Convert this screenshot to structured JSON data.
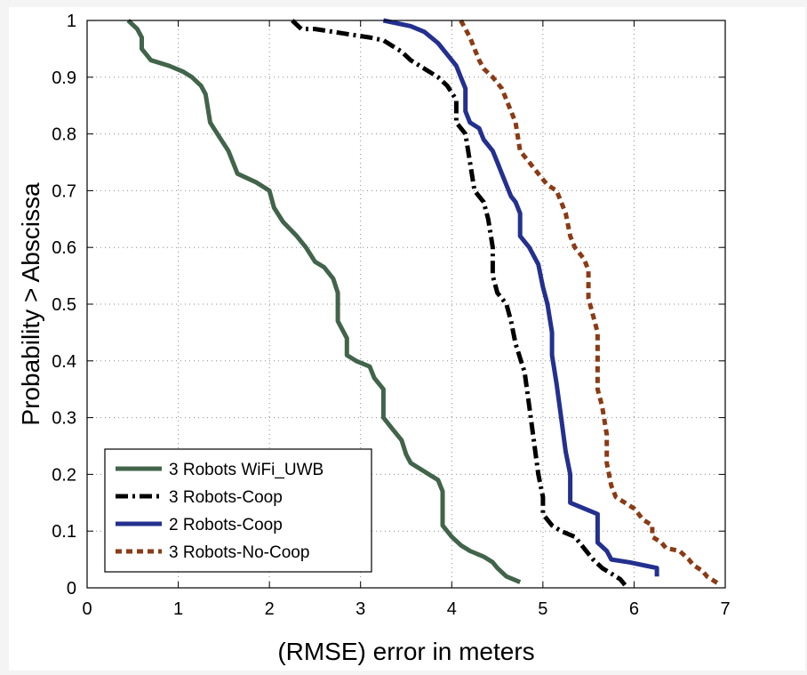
{
  "chart_data": {
    "type": "line",
    "title": "",
    "xlabel": "(RMSE) error in meters",
    "ylabel": "Probability > Abscissa",
    "xlim": [
      0,
      7
    ],
    "ylim": [
      0,
      1
    ],
    "xticks": [
      "0",
      "1",
      "2",
      "3",
      "4",
      "5",
      "6",
      "7"
    ],
    "yticks": [
      "0",
      "0.1",
      "0.2",
      "0.3",
      "0.4",
      "0.5",
      "0.6",
      "0.7",
      "0.8",
      "0.9",
      "1"
    ],
    "grid": true,
    "legend_position": "bottom-left",
    "series": [
      {
        "name": "3 Robots WiFi_UWB",
        "color": "#41644a",
        "style": "solid",
        "points": [
          [
            0.45,
            1.0
          ],
          [
            0.55,
            0.985
          ],
          [
            0.6,
            0.97
          ],
          [
            0.6,
            0.95
          ],
          [
            0.65,
            0.94
          ],
          [
            0.7,
            0.93
          ],
          [
            0.9,
            0.92
          ],
          [
            1.05,
            0.91
          ],
          [
            1.15,
            0.9
          ],
          [
            1.25,
            0.885
          ],
          [
            1.3,
            0.87
          ],
          [
            1.35,
            0.82
          ],
          [
            1.45,
            0.795
          ],
          [
            1.55,
            0.77
          ],
          [
            1.6,
            0.75
          ],
          [
            1.65,
            0.73
          ],
          [
            1.85,
            0.715
          ],
          [
            2.0,
            0.7
          ],
          [
            2.05,
            0.67
          ],
          [
            2.15,
            0.645
          ],
          [
            2.3,
            0.62
          ],
          [
            2.4,
            0.6
          ],
          [
            2.5,
            0.575
          ],
          [
            2.6,
            0.565
          ],
          [
            2.7,
            0.545
          ],
          [
            2.75,
            0.52
          ],
          [
            2.75,
            0.47
          ],
          [
            2.85,
            0.44
          ],
          [
            2.85,
            0.41
          ],
          [
            2.95,
            0.4
          ],
          [
            3.1,
            0.39
          ],
          [
            3.15,
            0.37
          ],
          [
            3.25,
            0.35
          ],
          [
            3.25,
            0.3
          ],
          [
            3.35,
            0.28
          ],
          [
            3.45,
            0.26
          ],
          [
            3.5,
            0.235
          ],
          [
            3.55,
            0.22
          ],
          [
            3.65,
            0.21
          ],
          [
            3.75,
            0.2
          ],
          [
            3.85,
            0.19
          ],
          [
            3.9,
            0.17
          ],
          [
            3.9,
            0.11
          ],
          [
            4.0,
            0.09
          ],
          [
            4.1,
            0.075
          ],
          [
            4.2,
            0.065
          ],
          [
            4.35,
            0.055
          ],
          [
            4.45,
            0.045
          ],
          [
            4.5,
            0.035
          ],
          [
            4.6,
            0.02
          ],
          [
            4.75,
            0.01
          ]
        ]
      },
      {
        "name": "3 Robots-Coop",
        "color": "#000000",
        "style": "dashdot",
        "points": [
          [
            2.25,
            1.0
          ],
          [
            2.35,
            0.985
          ],
          [
            2.5,
            0.985
          ],
          [
            2.7,
            0.98
          ],
          [
            2.9,
            0.975
          ],
          [
            3.1,
            0.97
          ],
          [
            3.25,
            0.965
          ],
          [
            3.35,
            0.955
          ],
          [
            3.45,
            0.945
          ],
          [
            3.55,
            0.93
          ],
          [
            3.7,
            0.915
          ],
          [
            3.85,
            0.9
          ],
          [
            3.95,
            0.885
          ],
          [
            4.05,
            0.86
          ],
          [
            4.05,
            0.82
          ],
          [
            4.15,
            0.8
          ],
          [
            4.2,
            0.75
          ],
          [
            4.25,
            0.7
          ],
          [
            4.35,
            0.68
          ],
          [
            4.4,
            0.65
          ],
          [
            4.45,
            0.6
          ],
          [
            4.45,
            0.55
          ],
          [
            4.5,
            0.52
          ],
          [
            4.6,
            0.5
          ],
          [
            4.65,
            0.47
          ],
          [
            4.7,
            0.43
          ],
          [
            4.8,
            0.38
          ],
          [
            4.85,
            0.32
          ],
          [
            4.9,
            0.26
          ],
          [
            4.95,
            0.2
          ],
          [
            5.0,
            0.16
          ],
          [
            5.0,
            0.13
          ],
          [
            5.1,
            0.11
          ],
          [
            5.2,
            0.1
          ],
          [
            5.35,
            0.09
          ],
          [
            5.45,
            0.07
          ],
          [
            5.55,
            0.05
          ],
          [
            5.65,
            0.035
          ],
          [
            5.75,
            0.025
          ],
          [
            5.85,
            0.015
          ],
          [
            5.9,
            0.005
          ]
        ]
      },
      {
        "name": "2 Robots-Coop",
        "color": "#23308f",
        "style": "solid",
        "points": [
          [
            3.25,
            1.0
          ],
          [
            3.55,
            0.99
          ],
          [
            3.7,
            0.98
          ],
          [
            3.85,
            0.96
          ],
          [
            3.95,
            0.94
          ],
          [
            4.05,
            0.92
          ],
          [
            4.1,
            0.9
          ],
          [
            4.15,
            0.88
          ],
          [
            4.15,
            0.84
          ],
          [
            4.2,
            0.82
          ],
          [
            4.3,
            0.81
          ],
          [
            4.35,
            0.79
          ],
          [
            4.45,
            0.77
          ],
          [
            4.5,
            0.75
          ],
          [
            4.55,
            0.73
          ],
          [
            4.6,
            0.71
          ],
          [
            4.65,
            0.69
          ],
          [
            4.7,
            0.68
          ],
          [
            4.75,
            0.66
          ],
          [
            4.75,
            0.62
          ],
          [
            4.85,
            0.6
          ],
          [
            4.95,
            0.57
          ],
          [
            5.0,
            0.53
          ],
          [
            5.05,
            0.5
          ],
          [
            5.1,
            0.45
          ],
          [
            5.1,
            0.41
          ],
          [
            5.15,
            0.36
          ],
          [
            5.2,
            0.3
          ],
          [
            5.25,
            0.24
          ],
          [
            5.3,
            0.2
          ],
          [
            5.3,
            0.15
          ],
          [
            5.45,
            0.14
          ],
          [
            5.6,
            0.13
          ],
          [
            5.6,
            0.08
          ],
          [
            5.7,
            0.065
          ],
          [
            5.75,
            0.05
          ],
          [
            5.95,
            0.045
          ],
          [
            6.1,
            0.04
          ],
          [
            6.25,
            0.035
          ],
          [
            6.25,
            0.02
          ]
        ]
      },
      {
        "name": "3 Robots-No-Coop",
        "color": "#8a3b16",
        "style": "dotted",
        "points": [
          [
            4.1,
            1.0
          ],
          [
            4.15,
            0.985
          ],
          [
            4.2,
            0.97
          ],
          [
            4.25,
            0.95
          ],
          [
            4.3,
            0.93
          ],
          [
            4.35,
            0.915
          ],
          [
            4.45,
            0.9
          ],
          [
            4.55,
            0.88
          ],
          [
            4.6,
            0.86
          ],
          [
            4.65,
            0.84
          ],
          [
            4.7,
            0.82
          ],
          [
            4.75,
            0.77
          ],
          [
            4.85,
            0.75
          ],
          [
            4.95,
            0.73
          ],
          [
            5.05,
            0.71
          ],
          [
            5.15,
            0.7
          ],
          [
            5.2,
            0.68
          ],
          [
            5.25,
            0.66
          ],
          [
            5.3,
            0.62
          ],
          [
            5.35,
            0.6
          ],
          [
            5.45,
            0.58
          ],
          [
            5.5,
            0.56
          ],
          [
            5.5,
            0.51
          ],
          [
            5.55,
            0.48
          ],
          [
            5.6,
            0.45
          ],
          [
            5.6,
            0.35
          ],
          [
            5.65,
            0.32
          ],
          [
            5.7,
            0.27
          ],
          [
            5.7,
            0.22
          ],
          [
            5.75,
            0.18
          ],
          [
            5.8,
            0.16
          ],
          [
            5.9,
            0.15
          ],
          [
            6.0,
            0.14
          ],
          [
            6.05,
            0.13
          ],
          [
            6.1,
            0.12
          ],
          [
            6.2,
            0.11
          ],
          [
            6.2,
            0.09
          ],
          [
            6.3,
            0.08
          ],
          [
            6.35,
            0.07
          ],
          [
            6.5,
            0.065
          ],
          [
            6.6,
            0.05
          ],
          [
            6.65,
            0.04
          ],
          [
            6.75,
            0.03
          ],
          [
            6.8,
            0.02
          ],
          [
            6.9,
            0.01
          ],
          [
            6.95,
            0.005
          ]
        ]
      }
    ]
  }
}
